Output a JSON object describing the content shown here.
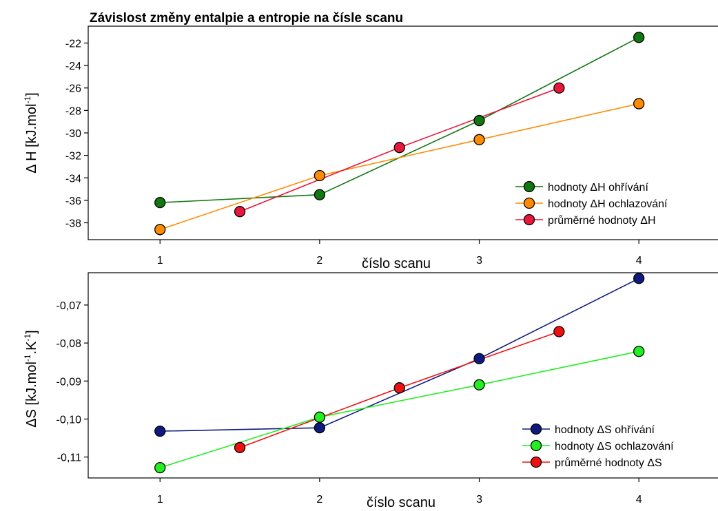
{
  "chart_data": [
    {
      "type": "line",
      "title": "Závislost změny entalpie a entropie na čísle scanu",
      "xlabel": "číslo scanu",
      "ylabel": "Δ H [kJ.mol",
      "ylabel_sup": "-1",
      "ylabel_tail": "]",
      "xlim": [
        0.55,
        4.5
      ],
      "ylim": [
        -39.5,
        -20.5
      ],
      "xticks": [
        1,
        2,
        3,
        4
      ],
      "xtick_labels": [
        "1",
        "2",
        "3",
        "4"
      ],
      "yticks": [
        -38,
        -36,
        -34,
        -32,
        -30,
        -28,
        -26,
        -24,
        -22
      ],
      "ytick_labels": [
        "-38",
        "-36",
        "-34",
        "-32",
        "-30",
        "-28",
        "-26",
        "-24",
        "-22"
      ],
      "legend_position": "bottom-right",
      "grid": false,
      "series": [
        {
          "name": "hodnoty ΔH ohřívání",
          "color": "#117711",
          "x": [
            1,
            2,
            3,
            4
          ],
          "y": [
            -36.2,
            -35.5,
            -28.9,
            -21.5
          ]
        },
        {
          "name": "hodnoty ΔH ochlazování",
          "color": "#ff8c00",
          "x": [
            1,
            2,
            3,
            4
          ],
          "y": [
            -38.6,
            -33.8,
            -30.6,
            -27.4
          ]
        },
        {
          "name": "průměrné hodnoty ΔH",
          "color": "#e8173c",
          "x": [
            1.5,
            2.5,
            3.5
          ],
          "y": [
            -37.0,
            -31.3,
            -26.0
          ]
        }
      ]
    },
    {
      "type": "line",
      "title": "",
      "xlabel": "číslo scanu",
      "ylabel": "ΔS [kJ.mol",
      "ylabel_sup": "-1",
      "ylabel_mid": ".K",
      "ylabel_sup2": "-1",
      "ylabel_tail": "]",
      "xlim": [
        0.55,
        4.5
      ],
      "ylim": [
        -0.1155,
        -0.0615
      ],
      "xticks": [
        1,
        2,
        3,
        4
      ],
      "xtick_labels": [
        "1",
        "2",
        "3",
        "4"
      ],
      "yticks": [
        -0.11,
        -0.1,
        -0.09,
        -0.08,
        -0.07
      ],
      "ytick_labels": [
        "-0,11",
        "-0,10",
        "-0,09",
        "-0,08",
        "-0,07"
      ],
      "legend_position": "bottom-right",
      "grid": false,
      "series": [
        {
          "name": "hodnoty ΔS ohřívání",
          "color": "#0e1a7e",
          "x": [
            1,
            2,
            3,
            4
          ],
          "y": [
            -0.1032,
            -0.1023,
            -0.0841,
            -0.063
          ]
        },
        {
          "name": "hodnoty ΔS ochlazování",
          "color": "#22ee22",
          "x": [
            1,
            2,
            3,
            4
          ],
          "y": [
            -0.1128,
            -0.0995,
            -0.091,
            -0.0822
          ]
        },
        {
          "name": "průměrné hodnoty ΔS",
          "color": "#ee1111",
          "x": [
            1.5,
            2.5,
            3.5
          ],
          "y": [
            -0.1075,
            -0.0918,
            -0.077
          ]
        }
      ]
    }
  ]
}
